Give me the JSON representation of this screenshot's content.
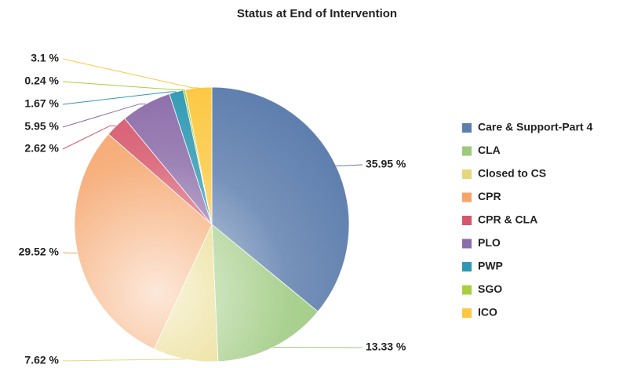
{
  "chart_data": {
    "type": "pie",
    "title": "Status at End of Intervention",
    "categories": [
      "Care & Support-Part 4",
      "CLA",
      "Closed to CS",
      "CPR",
      "CPR & CLA",
      "PLO",
      "PWP",
      "SGO",
      "ICO"
    ],
    "values": [
      35.95,
      13.33,
      7.62,
      29.52,
      2.62,
      5.95,
      1.67,
      0.24,
      3.1
    ],
    "value_labels": [
      "35.95 %",
      "13.33 %",
      "7.62 %",
      "29.52 %",
      "2.62 %",
      "5.95 %",
      "1.67 %",
      "0.24 %",
      "3.1 %"
    ],
    "colors": [
      "#5f7fae",
      "#9cc97d",
      "#e7d67c",
      "#f5a46a",
      "#d6566b",
      "#8b6ca8",
      "#2f99b4",
      "#a8cf3d",
      "#fcc842"
    ],
    "legend": "right"
  }
}
